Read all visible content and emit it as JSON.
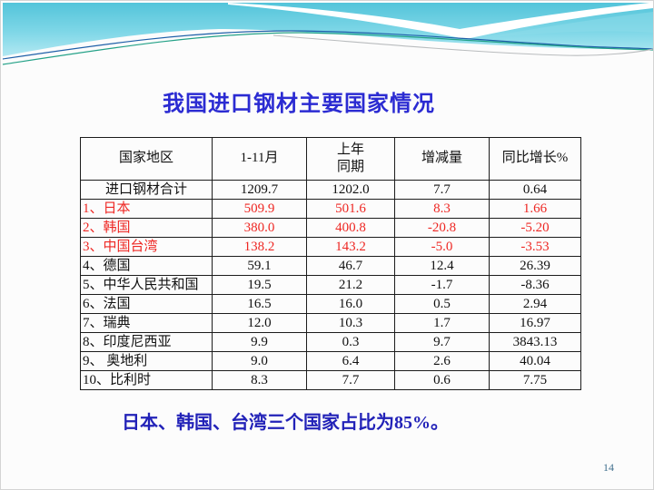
{
  "slide": {
    "title": "我国进口钢材主要国家情况",
    "footnote": "日本、韩国、台湾三个国家占比为85%。",
    "page_number": "14"
  },
  "colors": {
    "title_blue": "#2b2bd2",
    "footnote_blue": "#2222b8",
    "highlight_red": "#ee2723",
    "body_black": "#111111",
    "page_number_teal": "#41708e",
    "band_teal_top": "#53c4da",
    "band_teal_bottom": "#b2e8f2"
  },
  "table": {
    "headers": [
      "国家地区",
      "1-11月",
      "上年\n同期",
      "增减量",
      "同比增长%"
    ],
    "rows": [
      {
        "label": "进口钢材合计",
        "values": [
          "1209.7",
          "1202.0",
          "7.7",
          "0.64"
        ],
        "red": false,
        "label_align": "center"
      },
      {
        "label": "1、日本",
        "values": [
          "509.9",
          "501.6",
          "8.3",
          "1.66"
        ],
        "red": true,
        "label_align": "left"
      },
      {
        "label": "2、韩国",
        "values": [
          "380.0",
          "400.8",
          "-20.8",
          "-5.20"
        ],
        "red": true,
        "label_align": "left"
      },
      {
        "label": "3、中国台湾",
        "values": [
          "138.2",
          "143.2",
          "-5.0",
          "-3.53"
        ],
        "red": true,
        "label_align": "left"
      },
      {
        "label": "4、德国",
        "values": [
          "59.1",
          "46.7",
          "12.4",
          "26.39"
        ],
        "red": false,
        "label_align": "left"
      },
      {
        "label": "5、中华人民共和国",
        "values": [
          "19.5",
          "21.2",
          "-1.7",
          "-8.36"
        ],
        "red": false,
        "label_align": "left"
      },
      {
        "label": "6、法国",
        "values": [
          "16.5",
          "16.0",
          "0.5",
          "2.94"
        ],
        "red": false,
        "label_align": "left"
      },
      {
        "label": "7、瑞典",
        "values": [
          "12.0",
          "10.3",
          "1.7",
          "16.97"
        ],
        "red": false,
        "label_align": "left"
      },
      {
        "label": "8、印度尼西亚",
        "values": [
          "9.9",
          "0.3",
          "9.7",
          "3843.13"
        ],
        "red": false,
        "label_align": "left"
      },
      {
        "label": "9、 奥地利",
        "values": [
          "9.0",
          "6.4",
          "2.6",
          "40.04"
        ],
        "red": false,
        "label_align": "left"
      },
      {
        "label": "10、比利时",
        "values": [
          "8.3",
          "7.7",
          "0.6",
          "7.75"
        ],
        "red": false,
        "label_align": "left"
      }
    ]
  }
}
